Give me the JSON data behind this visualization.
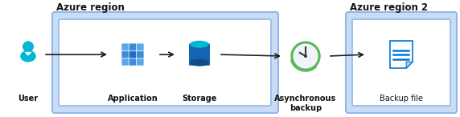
{
  "fig_width": 5.72,
  "fig_height": 1.46,
  "dpi": 100,
  "bg_color": "#ffffff",
  "region_box_color": "#c8dcf5",
  "region_box_edge": "#90b8e8",
  "region1_label": "Azure region",
  "region2_label": "Azure region 2",
  "user_label": "User",
  "app_label": "Application",
  "storage_label": "Storage",
  "async_label": "Asynchronous\nbackup",
  "backup_label": "Backup file",
  "label_fontsize": 7.0,
  "title_fontsize": 8.5,
  "arrow_color": "#1a1a1a",
  "azure_blue": "#0078d4",
  "azure_blue2": "#1464b4",
  "azure_light": "#5aa0d8",
  "cyan_color": "#00b8d4",
  "green_color": "#5cb85c",
  "white": "#ffffff"
}
